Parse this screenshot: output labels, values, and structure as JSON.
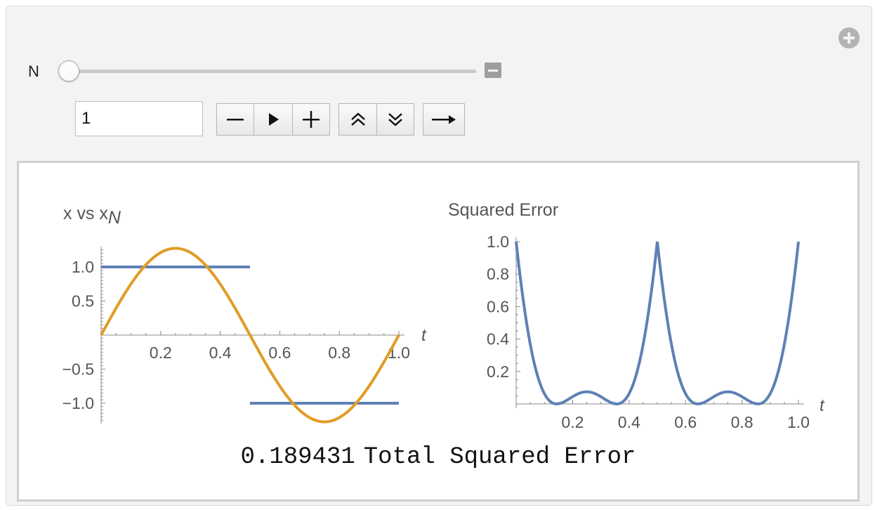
{
  "controls": {
    "variable_label": "N",
    "input_value": "1",
    "slider_value": 1,
    "slider_range": [
      1,
      20
    ]
  },
  "total": {
    "value": "0.189431",
    "label": "Total Squared Error"
  },
  "colors": {
    "series_blue": "#5e81b5",
    "series_orange": "#e19c24",
    "axis": "#888888"
  },
  "chart_data": [
    {
      "type": "line",
      "title": "x vs x",
      "title_subscript": "N",
      "xlabel": "t",
      "xlim": [
        0,
        1
      ],
      "ylim": [
        -1.3,
        1.3
      ],
      "x_ticks": [
        "0.2",
        "0.4",
        "0.6",
        "0.8",
        "1.0"
      ],
      "y_ticks": [
        "1.0",
        "0.5",
        "-0.5",
        "-1.0"
      ],
      "y_tick_values": [
        1.0,
        0.5,
        -0.5,
        -1.0
      ],
      "series": [
        {
          "color": "#5e81b5",
          "x": [
            0,
            0.5,
            0.5,
            1.0
          ],
          "y": [
            1,
            1,
            -1,
            -1
          ]
        },
        {
          "color": "#e19c24",
          "function": "(4/pi)*sin(2*pi*t)",
          "x": [
            0,
            0.25,
            0.5,
            0.75,
            1.0
          ],
          "y": [
            0,
            1.273,
            0,
            -1.273,
            0
          ]
        }
      ]
    },
    {
      "type": "line",
      "title": "Squared Error",
      "xlabel": "t",
      "xlim": [
        0,
        1
      ],
      "ylim": [
        0,
        1
      ],
      "x_ticks": [
        "0.2",
        "0.4",
        "0.6",
        "0.8",
        "1.0"
      ],
      "y_ticks": [
        "1.0",
        "0.8",
        "0.6",
        "0.4",
        "0.2"
      ],
      "y_tick_values": [
        1.0,
        0.8,
        0.6,
        0.4,
        0.2
      ],
      "series": [
        {
          "color": "#5e81b5",
          "function": "(sign(sin(2*pi*t)) - (4/pi)*sin(2*pi*t))^2",
          "x": [
            0,
            0.14,
            0.25,
            0.36,
            0.5,
            0.64,
            0.75,
            0.86,
            1.0
          ],
          "y": [
            1,
            0,
            0.075,
            0,
            1,
            0,
            0.075,
            0,
            1
          ]
        }
      ]
    }
  ]
}
